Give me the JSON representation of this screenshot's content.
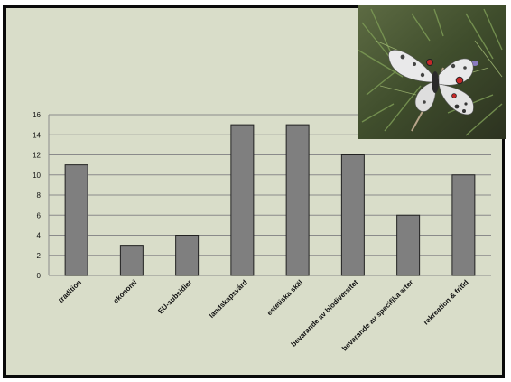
{
  "colors": {
    "background": "#d9ddc9",
    "bar_fill": "#7f7f7f",
    "bar_stroke": "#222222",
    "gridline": "#8a8a8a",
    "frame": "#0a0a0a"
  },
  "photo": {
    "icon": "butterfly-photo"
  },
  "chart_data": {
    "type": "bar",
    "categories": [
      "tradition",
      "ekonomi",
      "EU-subsidier",
      "landskapsvård",
      "estetiska skäl",
      "bevarande av biodiversitet",
      "bevarande av specifika arter",
      "rekreation & fritid"
    ],
    "values": [
      11,
      3,
      4,
      15,
      15,
      12,
      6,
      10
    ],
    "title": "",
    "xlabel": "",
    "ylabel": "",
    "ylim": [
      0,
      16
    ],
    "yticks": [
      "0",
      "2",
      "4",
      "6",
      "8",
      "10",
      "12",
      "14",
      "16"
    ],
    "grid": true,
    "legend": "none"
  }
}
